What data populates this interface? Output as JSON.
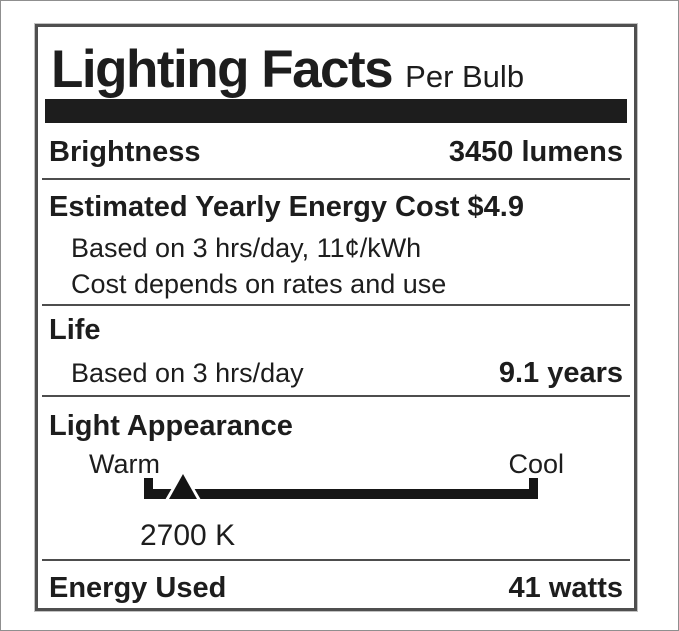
{
  "label": {
    "title": "Lighting Facts",
    "subtitle": "Per Bulb",
    "brightness": {
      "name": "Brightness",
      "value": "3450 lumens"
    },
    "energy_cost": {
      "title": "Estimated Yearly Energy Cost $4.9",
      "basis": "Based on 3 hrs/day, 11¢/kWh",
      "note": "Cost depends on rates and use"
    },
    "life": {
      "name": "Life",
      "basis": "Based on 3 hrs/day",
      "value": "9.1 years"
    },
    "light_appearance": {
      "name": "Light Appearance",
      "warm_label": "Warm",
      "cool_label": "Cool",
      "temperature": "2700 K",
      "marker_position_pct": 10
    },
    "energy_used": {
      "name": "Energy Used",
      "value": "41 watts"
    },
    "colors": {
      "ink": "#1d1d1d",
      "bar": "#1d1d1d",
      "border": "#4f4f4f",
      "divider": "#4d4d4d"
    }
  }
}
